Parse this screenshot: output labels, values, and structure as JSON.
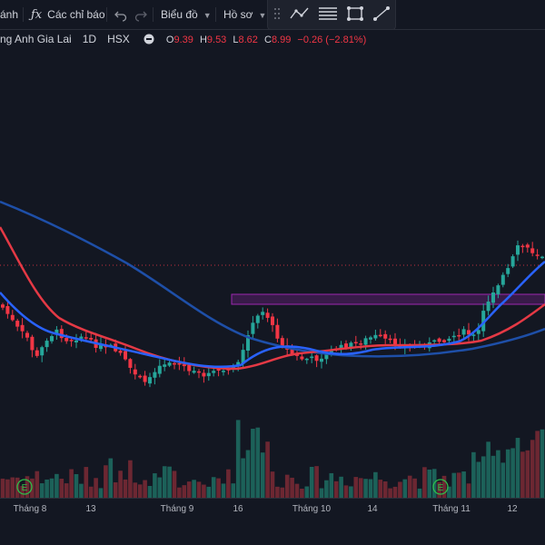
{
  "toolbar": {
    "frag_label": "ánh",
    "indicators_label": "Các chỉ báo",
    "chart_type_label": "Biểu đồ",
    "profile_label": "Hồ sơ"
  },
  "symbol": {
    "name": "ng Anh Gia Lai",
    "interval": "1D",
    "exchange": "HSX",
    "o_label": "O",
    "o_value": "9.39",
    "h_label": "H",
    "h_value": "9.53",
    "l_label": "L",
    "l_value": "8.62",
    "c_label": "C",
    "c_value": "8.99",
    "change": "−0.26 (−2.81%)"
  },
  "colors": {
    "up": "#26a69a",
    "down": "#f23645",
    "ma_blue": "#2962ff",
    "ma_navy": "#1e4fa8",
    "ma_red": "#e53945",
    "zone": "#9c27b0"
  },
  "chart_data": {
    "type": "candlestick",
    "time_axis_labels": [
      "Tháng 8",
      "13",
      "Tháng 9",
      "16",
      "Tháng 10",
      "14",
      "Tháng 11",
      "12"
    ],
    "event_markers": [
      {
        "label": "E",
        "near": "Tháng 8"
      },
      {
        "label": "E",
        "near": "Tháng 11"
      }
    ]
  }
}
